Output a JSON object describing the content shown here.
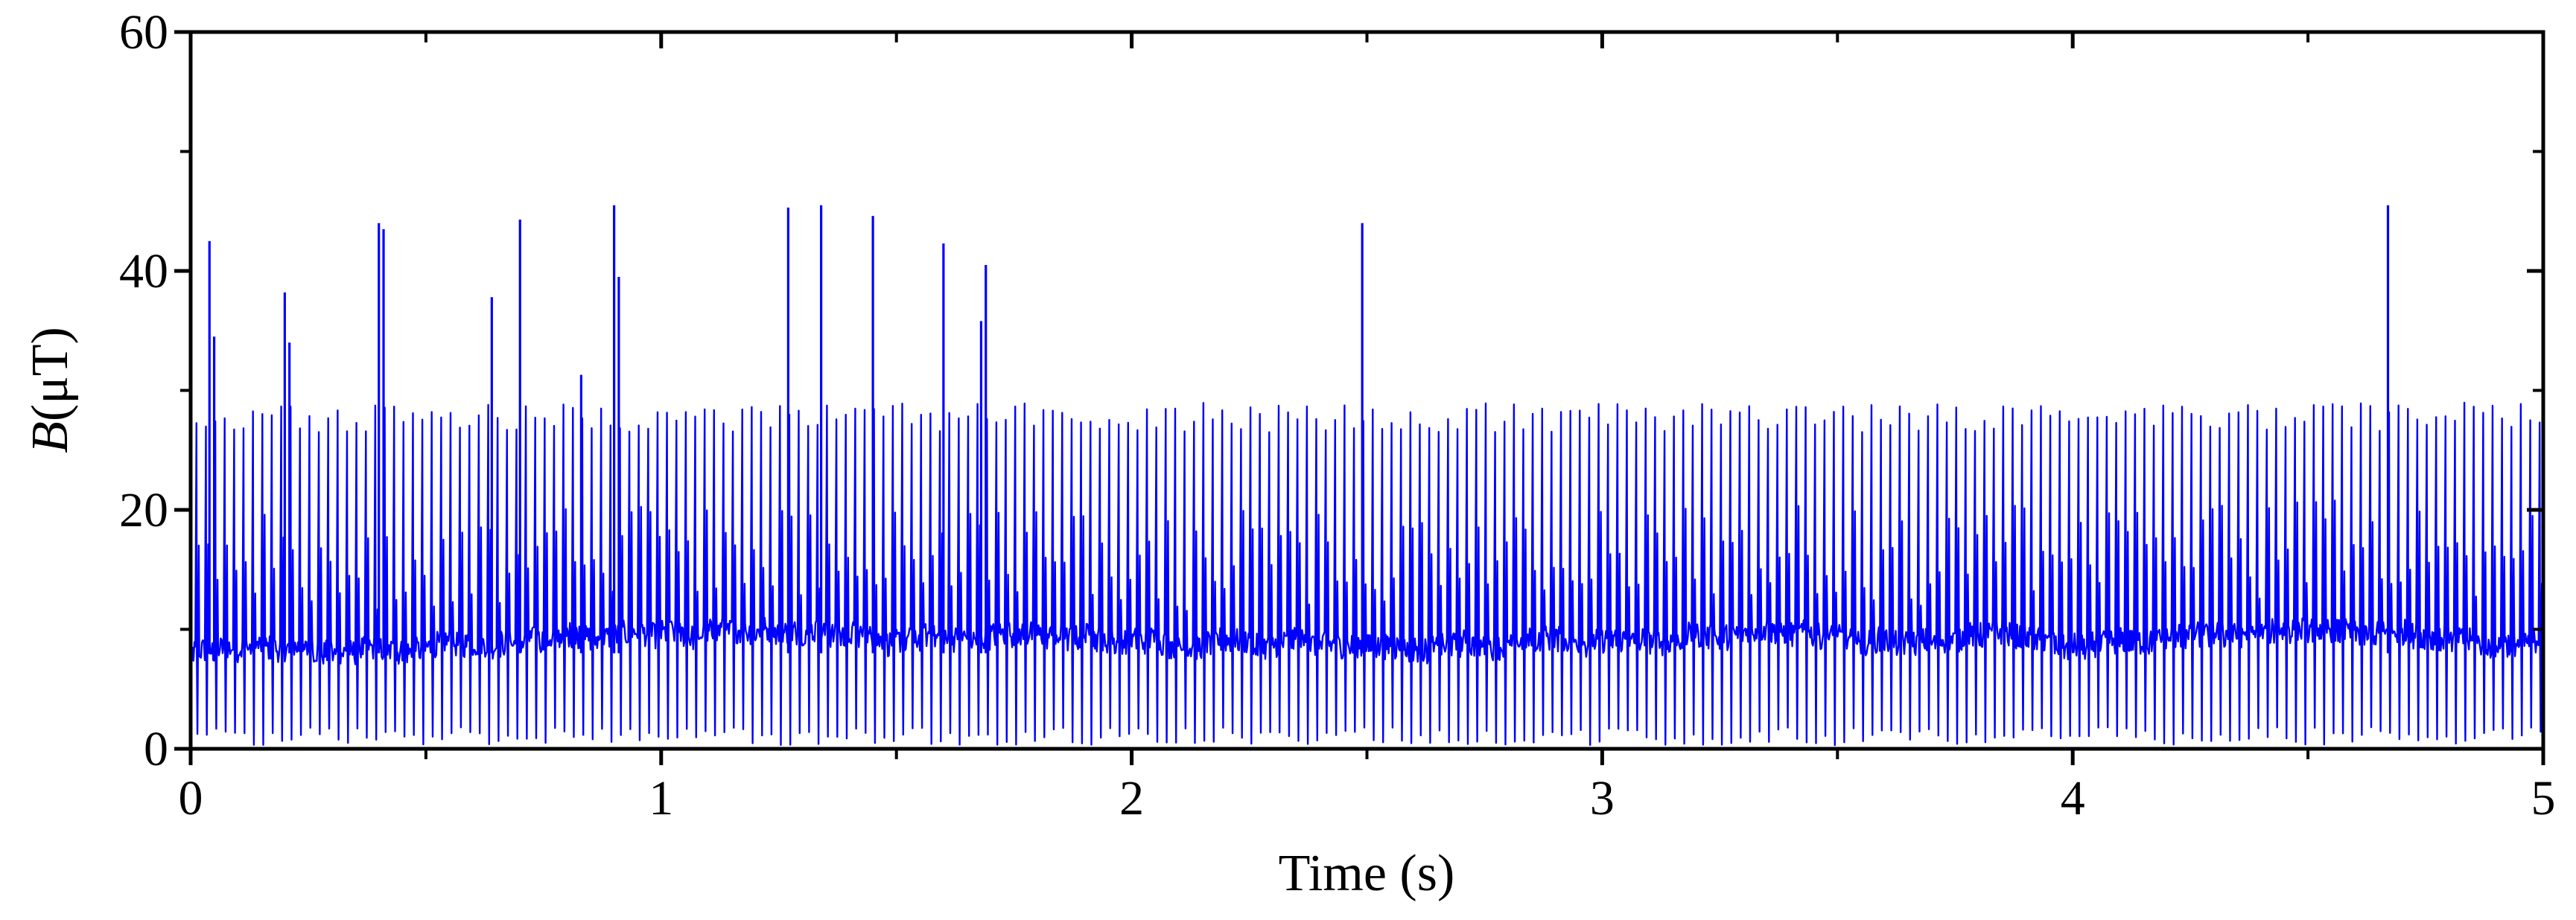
{
  "chart_data": {
    "type": "line",
    "title": "",
    "xlabel": "Time (s)",
    "ylabel_italic": "B",
    "ylabel_unit": "(μT)",
    "xlim": [
      0,
      5
    ],
    "ylim": [
      0,
      60
    ],
    "x_ticks": [
      0,
      1,
      2,
      3,
      4,
      5
    ],
    "x_tick_labels": [
      "0",
      "1",
      "2",
      "3",
      "4",
      "5"
    ],
    "y_ticks": [
      0,
      20,
      40,
      60
    ],
    "y_tick_labels": [
      "0",
      "20",
      "40",
      "60"
    ],
    "grid": false,
    "legend": "none",
    "series": [
      {
        "color": "#0000ff",
        "pulse_period_s": 0.02,
        "baseline_uT": 8,
        "baseline_range_uT": [
          7,
          10
        ],
        "pulse_peak_typical_uT": [
          26.5,
          29
        ],
        "pulse_trough_uT": 0.3,
        "spikes": [
          {
            "x": 0.04,
            "y": 42.5
          },
          {
            "x": 0.05,
            "y": 34.5
          },
          {
            "x": 0.2,
            "y": 38.2
          },
          {
            "x": 0.21,
            "y": 34.0
          },
          {
            "x": 0.4,
            "y": 44.0
          },
          {
            "x": 0.41,
            "y": 43.5
          },
          {
            "x": 0.64,
            "y": 37.8
          },
          {
            "x": 0.7,
            "y": 44.3
          },
          {
            "x": 0.83,
            "y": 31.3
          },
          {
            "x": 0.9,
            "y": 45.5
          },
          {
            "x": 0.91,
            "y": 39.5
          },
          {
            "x": 1.27,
            "y": 45.3
          },
          {
            "x": 1.34,
            "y": 45.5
          },
          {
            "x": 1.45,
            "y": 44.6
          },
          {
            "x": 1.6,
            "y": 42.3
          },
          {
            "x": 1.68,
            "y": 35.8
          },
          {
            "x": 1.69,
            "y": 40.5
          },
          {
            "x": 2.49,
            "y": 44.0
          },
          {
            "x": 4.67,
            "y": 45.5
          }
        ]
      }
    ]
  }
}
